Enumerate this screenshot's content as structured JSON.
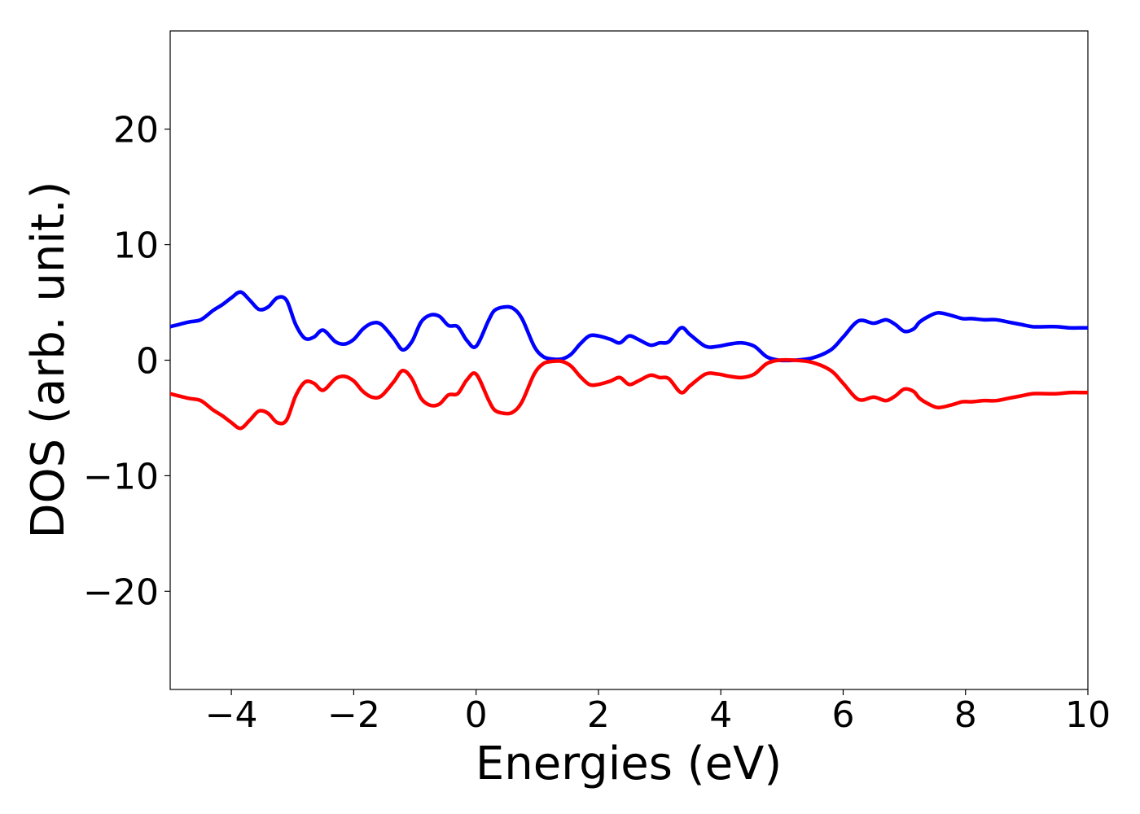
{
  "chart_data": {
    "type": "line",
    "title": "",
    "xlabel": "Energies (eV)",
    "ylabel": "DOS (arb. unit.)",
    "xlim": [
      -5,
      10
    ],
    "ylim": [
      -28.5,
      28.5
    ],
    "xticks": [
      -4,
      -2,
      0,
      2,
      4,
      6,
      8,
      10
    ],
    "xtick_labels": [
      "−4",
      "−2",
      "0",
      "2",
      "4",
      "6",
      "8",
      "10"
    ],
    "yticks": [
      20,
      10,
      0,
      -10,
      -20
    ],
    "ytick_labels": [
      "20",
      "10",
      "0",
      "−10",
      "−20"
    ],
    "grid": false,
    "legend": "none",
    "series": [
      {
        "color": "#0000ff",
        "x": [
          -5.0,
          -4.7,
          -4.5,
          -4.3,
          -4.15,
          -4.0,
          -3.85,
          -3.7,
          -3.55,
          -3.4,
          -3.25,
          -3.1,
          -2.95,
          -2.8,
          -2.65,
          -2.5,
          -2.3,
          -2.15,
          -2.0,
          -1.85,
          -1.7,
          -1.55,
          -1.35,
          -1.2,
          -1.05,
          -0.9,
          -0.75,
          -0.6,
          -0.45,
          -0.3,
          -0.15,
          0.0,
          0.2,
          0.3,
          0.45,
          0.6,
          0.75,
          0.95,
          1.1,
          1.25,
          1.4,
          1.55,
          1.7,
          1.85,
          2.0,
          2.2,
          2.35,
          2.5,
          2.65,
          2.85,
          3.0,
          3.15,
          3.35,
          3.5,
          3.75,
          3.95,
          4.15,
          4.35,
          4.55,
          4.75,
          4.95,
          5.2,
          5.5,
          5.8,
          6.0,
          6.25,
          6.5,
          6.7,
          6.85,
          7.0,
          7.15,
          7.25,
          7.4,
          7.55,
          7.75,
          7.95,
          8.1,
          8.3,
          8.5,
          8.7,
          8.9,
          9.1,
          9.3,
          9.5,
          9.7,
          9.85,
          10.0
        ],
        "y": [
          2.9,
          3.3,
          3.5,
          4.3,
          4.8,
          5.4,
          5.9,
          5.2,
          4.4,
          4.6,
          5.4,
          5.2,
          3.1,
          1.9,
          2.0,
          2.6,
          1.6,
          1.4,
          1.8,
          2.7,
          3.2,
          3.1,
          1.9,
          0.9,
          1.6,
          3.3,
          3.9,
          3.8,
          3.0,
          2.9,
          1.7,
          1.2,
          3.4,
          4.3,
          4.6,
          4.5,
          3.6,
          1.2,
          0.3,
          0.1,
          0.1,
          0.5,
          1.4,
          2.1,
          2.1,
          1.8,
          1.5,
          2.1,
          1.8,
          1.3,
          1.5,
          1.6,
          2.8,
          2.2,
          1.2,
          1.2,
          1.4,
          1.5,
          1.2,
          0.3,
          0.0,
          0.0,
          0.2,
          0.9,
          2.0,
          3.4,
          3.2,
          3.5,
          3.1,
          2.5,
          2.7,
          3.3,
          3.8,
          4.1,
          3.9,
          3.6,
          3.6,
          3.5,
          3.5,
          3.3,
          3.1,
          2.9,
          2.9,
          2.9,
          2.8,
          2.8,
          2.8
        ]
      },
      {
        "color": "#ff0000",
        "x": [
          -5.0,
          -4.7,
          -4.5,
          -4.3,
          -4.15,
          -4.0,
          -3.85,
          -3.7,
          -3.55,
          -3.4,
          -3.25,
          -3.1,
          -2.95,
          -2.8,
          -2.65,
          -2.5,
          -2.3,
          -2.15,
          -2.0,
          -1.85,
          -1.7,
          -1.55,
          -1.35,
          -1.2,
          -1.05,
          -0.9,
          -0.75,
          -0.6,
          -0.45,
          -0.3,
          -0.15,
          0.0,
          0.2,
          0.3,
          0.45,
          0.6,
          0.75,
          0.95,
          1.1,
          1.25,
          1.4,
          1.55,
          1.7,
          1.85,
          2.0,
          2.2,
          2.35,
          2.5,
          2.65,
          2.85,
          3.0,
          3.15,
          3.35,
          3.5,
          3.75,
          3.95,
          4.15,
          4.35,
          4.55,
          4.75,
          4.95,
          5.2,
          5.5,
          5.8,
          6.0,
          6.25,
          6.5,
          6.7,
          6.85,
          7.0,
          7.15,
          7.25,
          7.4,
          7.55,
          7.75,
          7.95,
          8.1,
          8.3,
          8.5,
          8.7,
          8.9,
          9.1,
          9.3,
          9.5,
          9.7,
          9.85,
          10.0
        ],
        "y": [
          -2.9,
          -3.3,
          -3.5,
          -4.3,
          -4.8,
          -5.4,
          -5.9,
          -5.2,
          -4.4,
          -4.6,
          -5.4,
          -5.2,
          -3.1,
          -1.9,
          -2.0,
          -2.6,
          -1.6,
          -1.4,
          -1.8,
          -2.7,
          -3.2,
          -3.1,
          -1.9,
          -0.9,
          -1.6,
          -3.3,
          -3.9,
          -3.8,
          -3.0,
          -2.9,
          -1.7,
          -1.2,
          -3.4,
          -4.3,
          -4.6,
          -4.5,
          -3.6,
          -1.2,
          -0.3,
          -0.1,
          -0.1,
          -0.5,
          -1.4,
          -2.1,
          -2.1,
          -1.8,
          -1.5,
          -2.1,
          -1.8,
          -1.3,
          -1.5,
          -1.6,
          -2.8,
          -2.2,
          -1.2,
          -1.2,
          -1.4,
          -1.5,
          -1.2,
          -0.3,
          0.0,
          0.0,
          -0.2,
          -0.9,
          -2.0,
          -3.4,
          -3.2,
          -3.5,
          -3.1,
          -2.5,
          -2.7,
          -3.3,
          -3.8,
          -4.1,
          -3.9,
          -3.6,
          -3.6,
          -3.5,
          -3.5,
          -3.3,
          -3.1,
          -2.9,
          -2.9,
          -2.9,
          -2.8,
          -2.8,
          -2.8
        ]
      }
    ]
  }
}
